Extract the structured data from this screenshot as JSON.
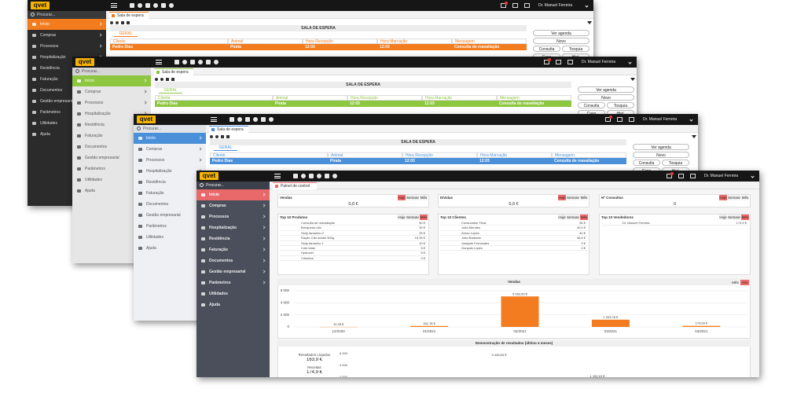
{
  "app": {
    "logo": "qvet",
    "user": "Dr. Manuel Ferreira",
    "search": "Procurar...",
    "menu": [
      "Início",
      "Compras",
      "Processos",
      "Hospitalização",
      "Residência",
      "Faturação",
      "Documentos",
      "Gestão empresarial",
      "Parâmetros",
      "Utilidades",
      "Ajuda"
    ]
  },
  "waiting_room": {
    "tab": "Sala de espera",
    "title": "SALA DE ESPERA",
    "section": "GERAL",
    "columns": [
      "Cliente",
      "Animal",
      "Hora Recepção",
      "Hora Marcação",
      "Mensagem"
    ],
    "rows": [
      [
        "Pedro Dias",
        "Pirata",
        "12:03",
        "12:03",
        "Consulta de reavaliação"
      ]
    ],
    "actions": [
      "Ver agenda",
      "Novo",
      "Consulta",
      "Tosquia",
      "Caso",
      "Hist."
    ]
  },
  "dashboard": {
    "tab": "Painel de control",
    "periods": [
      "Hoje",
      "Semana",
      "Mês"
    ],
    "summary": [
      {
        "title": "Vendas",
        "value": "0,0 €"
      },
      {
        "title": "Dívidas",
        "value": "0,0 €"
      },
      {
        "title": "Nº Consultas",
        "value": "0"
      }
    ],
    "tops": [
      {
        "title": "Top 10 Produtos",
        "rows": [
          [
            "Consulta de reavaliação",
            "50 €"
          ],
          [
            "Brinquedo cão",
            "30 €"
          ],
          [
            "Ssdy tamanho 2",
            "25 €"
          ],
          [
            "Ração Cão adulto 300g",
            "15,33 €"
          ],
          [
            "Ssdy tamanho 1",
            "10 €"
          ],
          [
            "Coln tolas",
            "5 €"
          ],
          [
            "Hydrocel",
            "5 €"
          ],
          [
            "Crilubtos",
            "0 €"
          ]
        ]
      },
      {
        "title": "Top 10 Clientes",
        "rows": [
          [
            "Consumidor Final",
            "55 €"
          ],
          [
            "João Mendes",
            "40,3 €"
          ],
          [
            "Arnau Lopes",
            "40 €"
          ],
          [
            "João Barbado",
            "36,6 €"
          ],
          [
            "Joaquim Fernandes",
            "0 €"
          ],
          [
            "Gonçalo Lopes",
            "0 €"
          ]
        ]
      },
      {
        "title": "Top 10 Vendedores",
        "rows": [
          [
            "Dr. Manuel Ferreira",
            "174,9 €"
          ]
        ]
      }
    ],
    "results": {
      "title": "Demonstração de resultados (último 4 meses)",
      "net_label": "Resultados Líquidos",
      "net": "163,9 €",
      "revenue_label": "Receitas",
      "revenue": "174,9 €",
      "axis": [
        "6 000",
        "4 000",
        "2 000"
      ],
      "point_labels": [
        "5 445,53 €",
        "1 152,19 €"
      ]
    }
  },
  "chart_data": {
    "type": "bar",
    "title": "Vendas",
    "periods": [
      "Mês",
      "Ano"
    ],
    "categories": [
      "12/2020",
      "01/2021",
      "02/2021",
      "03/2021",
      "04/2021"
    ],
    "values": [
      10.33,
      161.78,
      5062.5,
      1203.76,
      174.93
    ],
    "value_labels": [
      "10,33 €",
      "161,78 €",
      "5 062,50 €",
      "1 203,76 €",
      "174,93 €"
    ],
    "color": "#f47c20",
    "ylim": [
      0,
      6000
    ],
    "yticks": [
      0,
      {
        "value": 2000,
        "label": "2 000"
      },
      {
        "value": 4000,
        "label": "4 000"
      },
      {
        "value": 6000,
        "label": "6 000"
      }
    ],
    "grid": true
  }
}
